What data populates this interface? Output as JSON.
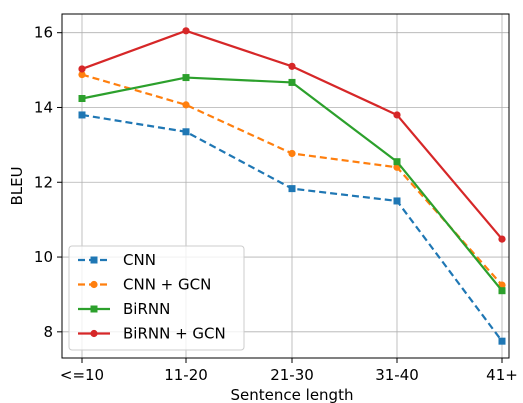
{
  "chart_data": {
    "type": "line",
    "categories": [
      "<=10",
      "11-20",
      "21-30",
      "31-40",
      "41+"
    ],
    "xlabel": "Sentence length",
    "ylabel": "BLEU",
    "ylim": [
      7.3,
      16.5
    ],
    "yticks": [
      8,
      10,
      12,
      14,
      16
    ],
    "grid": true,
    "legend_position": "lower-left",
    "series": [
      {
        "name": "CNN",
        "color": "#1f77b4",
        "dash": true,
        "marker": "square",
        "values": [
          13.8,
          13.35,
          11.83,
          11.5,
          7.75
        ]
      },
      {
        "name": "CNN + GCN",
        "color": "#ff7f0e",
        "dash": true,
        "marker": "circle",
        "values": [
          14.88,
          14.07,
          12.77,
          12.4,
          9.25
        ]
      },
      {
        "name": "BiRNN",
        "color": "#2ca02c",
        "dash": false,
        "marker": "square",
        "values": [
          14.24,
          14.8,
          14.67,
          12.55,
          9.1
        ]
      },
      {
        "name": "BiRNN + GCN",
        "color": "#d62728",
        "dash": false,
        "marker": "circle",
        "values": [
          15.03,
          16.05,
          15.1,
          13.8,
          10.48
        ]
      }
    ]
  }
}
